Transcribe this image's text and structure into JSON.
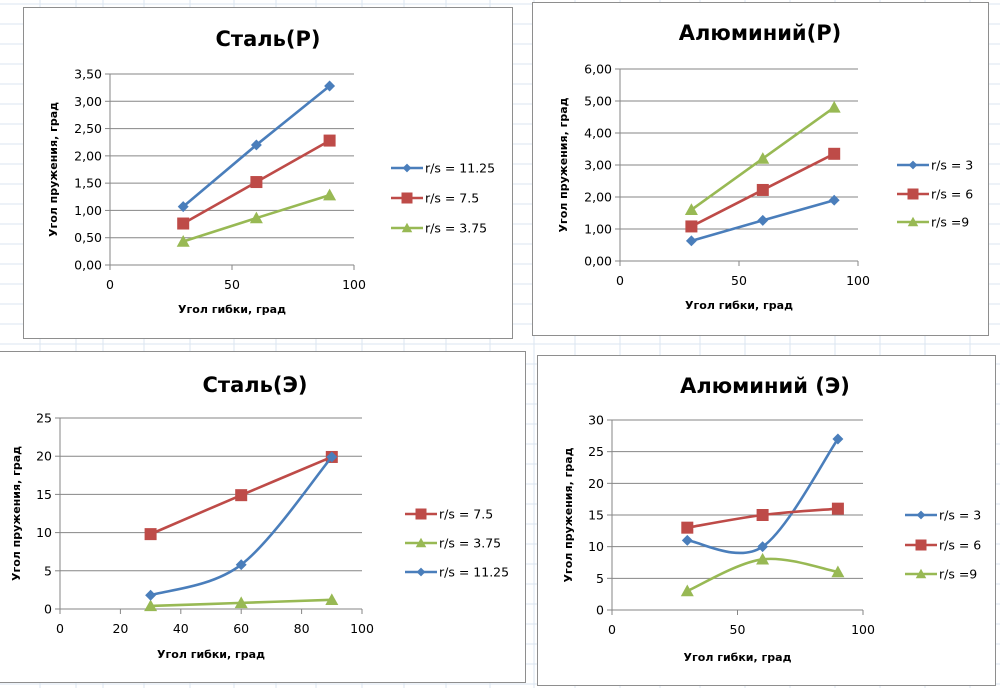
{
  "colors": {
    "blue": "#4a7ebb",
    "red": "#be4b48",
    "green": "#98b954",
    "gridline": "#868686",
    "sheet_grid": "#dbe5f1"
  },
  "chart_data": [
    {
      "id": "steel-p",
      "type": "line",
      "title": "Сталь(Р)",
      "xlabel": "Угол гибки, град",
      "ylabel": "Угол пружения, град",
      "xlim": [
        0,
        100
      ],
      "ylim": [
        0,
        3.5
      ],
      "x_ticks": [
        "0",
        "50",
        "100"
      ],
      "x_tick_values": [
        0,
        50,
        100
      ],
      "y_ticks": [
        "0,00",
        "0,50",
        "1,00",
        "1,50",
        "2,00",
        "2,50",
        "3,00",
        "3,50"
      ],
      "y_tick_values": [
        0,
        0.5,
        1,
        1.5,
        2,
        2.5,
        3,
        3.5
      ],
      "grid": true,
      "legend_position": "right",
      "smooth": false,
      "series": [
        {
          "name": "r/s = 11.25",
          "color": "blue",
          "marker": "diamond",
          "x": [
            30,
            60,
            90
          ],
          "y": [
            1.07,
            2.2,
            3.28
          ]
        },
        {
          "name": "r/s = 7.5",
          "color": "red",
          "marker": "square",
          "x": [
            30,
            60,
            90
          ],
          "y": [
            0.76,
            1.52,
            2.28
          ]
        },
        {
          "name": "r/s = 3.75",
          "color": "green",
          "marker": "triangle",
          "x": [
            30,
            60,
            90
          ],
          "y": [
            0.43,
            0.86,
            1.28
          ]
        }
      ]
    },
    {
      "id": "aluminum-p",
      "type": "line",
      "title": "Алюминий(Р)",
      "xlabel": "Угол гибки, град",
      "ylabel": "Угол пружения, град",
      "xlim": [
        0,
        100
      ],
      "ylim": [
        0,
        6
      ],
      "x_ticks": [
        "0",
        "50",
        "100"
      ],
      "x_tick_values": [
        0,
        50,
        100
      ],
      "y_ticks": [
        "0,00",
        "1,00",
        "2,00",
        "3,00",
        "4,00",
        "5,00",
        "6,00"
      ],
      "y_tick_values": [
        0,
        1,
        2,
        3,
        4,
        5,
        6
      ],
      "grid": true,
      "legend_position": "right",
      "smooth": false,
      "series": [
        {
          "name": "r/s = 3",
          "color": "blue",
          "marker": "diamond",
          "x": [
            30,
            60,
            90
          ],
          "y": [
            0.63,
            1.27,
            1.9
          ]
        },
        {
          "name": "r/s = 6",
          "color": "red",
          "marker": "square",
          "x": [
            30,
            60,
            90
          ],
          "y": [
            1.08,
            2.22,
            3.35
          ]
        },
        {
          "name": "r/s =9",
          "color": "green",
          "marker": "triangle",
          "x": [
            30,
            60,
            90
          ],
          "y": [
            1.6,
            3.2,
            4.8
          ]
        }
      ]
    },
    {
      "id": "steel-e",
      "type": "line",
      "title": "Сталь(Э)",
      "xlabel": "Угол гибки, град",
      "ylabel": "Угол пружения, град",
      "xlim": [
        0,
        100
      ],
      "ylim": [
        0,
        25
      ],
      "x_ticks": [
        "0",
        "20",
        "40",
        "60",
        "80",
        "100"
      ],
      "x_tick_values": [
        0,
        20,
        40,
        60,
        80,
        100
      ],
      "y_ticks": [
        "0",
        "5",
        "10",
        "15",
        "20",
        "25"
      ],
      "y_tick_values": [
        0,
        5,
        10,
        15,
        20,
        25
      ],
      "grid": true,
      "legend_position": "right",
      "smooth": true,
      "series": [
        {
          "name": "r/s = 7.5",
          "color": "red",
          "marker": "square",
          "x": [
            30,
            60,
            90
          ],
          "y": [
            9.8,
            14.9,
            19.9
          ]
        },
        {
          "name": "r/s = 3.75",
          "color": "green",
          "marker": "triangle",
          "x": [
            30,
            60,
            90
          ],
          "y": [
            0.4,
            0.8,
            1.2
          ]
        },
        {
          "name": "r/s = 11.25",
          "color": "blue",
          "marker": "diamond",
          "x": [
            30,
            60,
            90
          ],
          "y": [
            1.8,
            5.8,
            19.9
          ]
        }
      ]
    },
    {
      "id": "aluminum-e",
      "type": "line",
      "title": "Алюминий (Э)",
      "xlabel": "Угол гибки, град",
      "ylabel": "Угол пружения, град",
      "xlim": [
        0,
        100
      ],
      "ylim": [
        0,
        30
      ],
      "x_ticks": [
        "0",
        "50",
        "100"
      ],
      "x_tick_values": [
        0,
        50,
        100
      ],
      "y_ticks": [
        "0",
        "5",
        "10",
        "15",
        "20",
        "25",
        "30"
      ],
      "y_tick_values": [
        0,
        5,
        10,
        15,
        20,
        25,
        30
      ],
      "grid": true,
      "legend_position": "right",
      "smooth": true,
      "series": [
        {
          "name": "r/s = 3",
          "color": "blue",
          "marker": "diamond",
          "x": [
            30,
            60,
            90
          ],
          "y": [
            11,
            10,
            27
          ]
        },
        {
          "name": "r/s = 6",
          "color": "red",
          "marker": "square",
          "x": [
            30,
            60,
            90
          ],
          "y": [
            13,
            15,
            16
          ]
        },
        {
          "name": "r/s =9",
          "color": "green",
          "marker": "triangle",
          "x": [
            30,
            60,
            90
          ],
          "y": [
            3,
            8,
            6
          ]
        }
      ]
    }
  ]
}
